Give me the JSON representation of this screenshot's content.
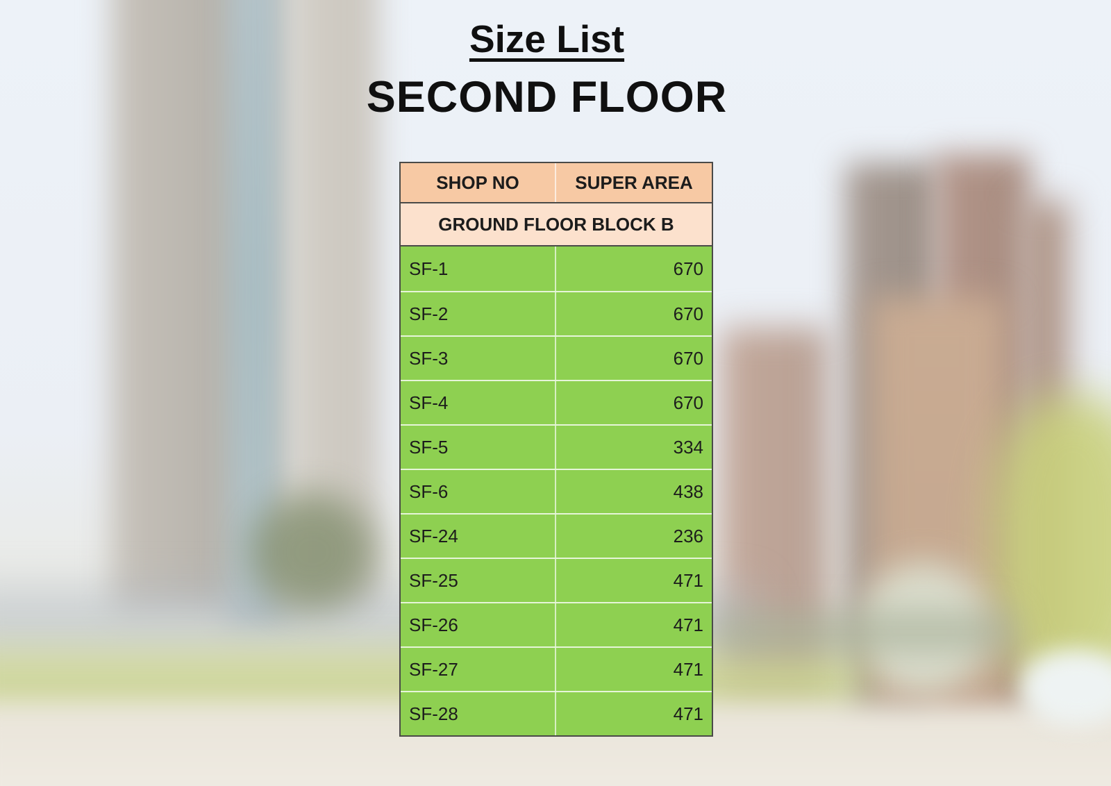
{
  "page": {
    "title": "Size List",
    "subtitle": "SECOND FLOOR"
  },
  "table": {
    "columns": [
      "SHOP NO",
      "SUPER AREA"
    ],
    "section_header": "GROUND FLOOR BLOCK B",
    "rows": [
      {
        "shop_no": "SF-1",
        "super_area": "670"
      },
      {
        "shop_no": "SF-2",
        "super_area": "670"
      },
      {
        "shop_no": "SF-3",
        "super_area": "670"
      },
      {
        "shop_no": "SF-4",
        "super_area": "670"
      },
      {
        "shop_no": "SF-5",
        "super_area": "334"
      },
      {
        "shop_no": "SF-6",
        "super_area": "438"
      },
      {
        "shop_no": "SF-24",
        "super_area": "236"
      },
      {
        "shop_no": "SF-25",
        "super_area": "471"
      },
      {
        "shop_no": "SF-26",
        "super_area": "471"
      },
      {
        "shop_no": "SF-27",
        "super_area": "471"
      },
      {
        "shop_no": "SF-28",
        "super_area": "471"
      }
    ],
    "colors": {
      "header_bg": "#f7c9a4",
      "section_bg": "#fce1cd",
      "row_bg": "#8ed051"
    }
  }
}
